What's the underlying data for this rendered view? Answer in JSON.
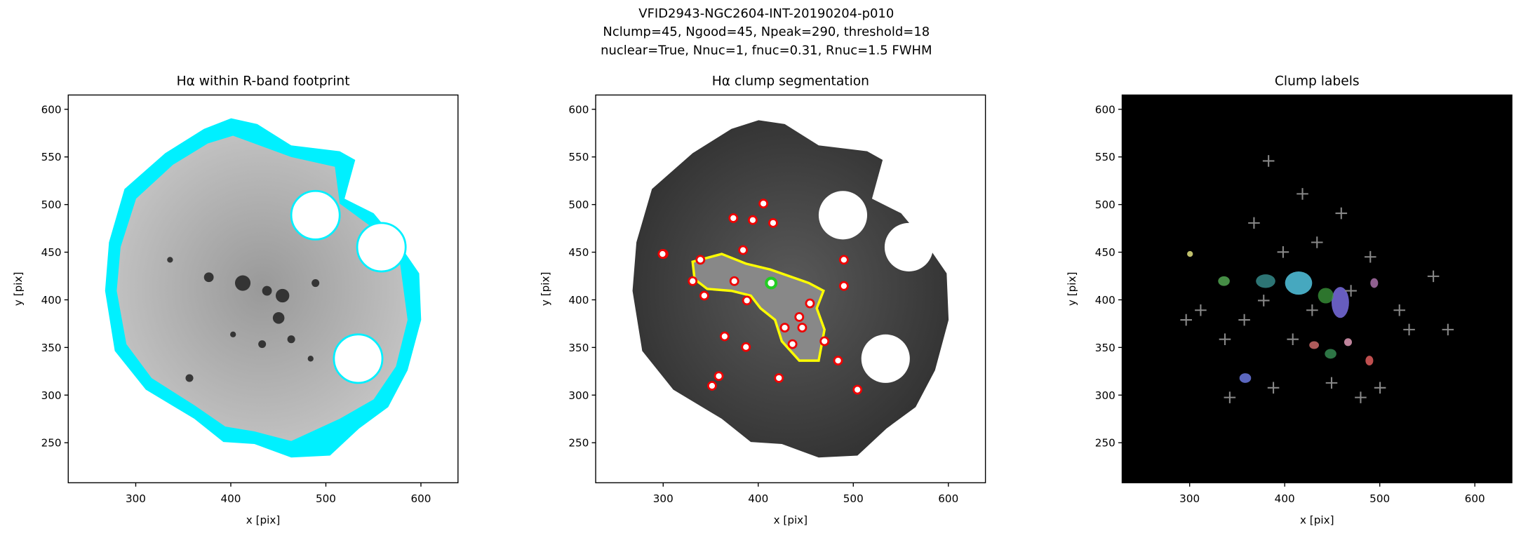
{
  "title": [
    "VFID2943-NGC2604-INT-20190204-p010",
    "Nclump=45, Ngood=45, Npeak=290, threshold=18",
    "nuclear=True, Nnuc=1, fnuc=0.31, Rnuc=1.5 FWHM"
  ],
  "chart_data": [
    {
      "type": "image",
      "title": "Hα within R-band footprint",
      "xlabel": "x [pix]",
      "ylabel": "y [pix]",
      "xlim": [
        229,
        639
      ],
      "ylim": [
        208,
        615
      ],
      "xticks": [
        300,
        400,
        500,
        600
      ],
      "yticks": [
        250,
        300,
        350,
        400,
        450,
        500,
        550,
        600
      ]
    },
    {
      "type": "image",
      "title": "Hα clump segmentation",
      "xlabel": "x [pix]",
      "ylabel": "y [pix]",
      "xlim": [
        229,
        639
      ],
      "ylim": [
        208,
        615
      ],
      "xticks": [
        300,
        400,
        500,
        600
      ],
      "yticks": [
        250,
        300,
        350,
        400,
        450,
        500,
        550,
        600
      ]
    },
    {
      "type": "image",
      "title": "Clump labels",
      "xlabel": "x [pix]",
      "ylabel": "y [pix]",
      "xlim": [
        229,
        639
      ],
      "ylim": [
        208,
        615
      ],
      "xticks": [
        300,
        400,
        500,
        600
      ],
      "yticks": [
        250,
        300,
        350,
        400,
        450,
        500,
        550,
        600
      ]
    }
  ]
}
